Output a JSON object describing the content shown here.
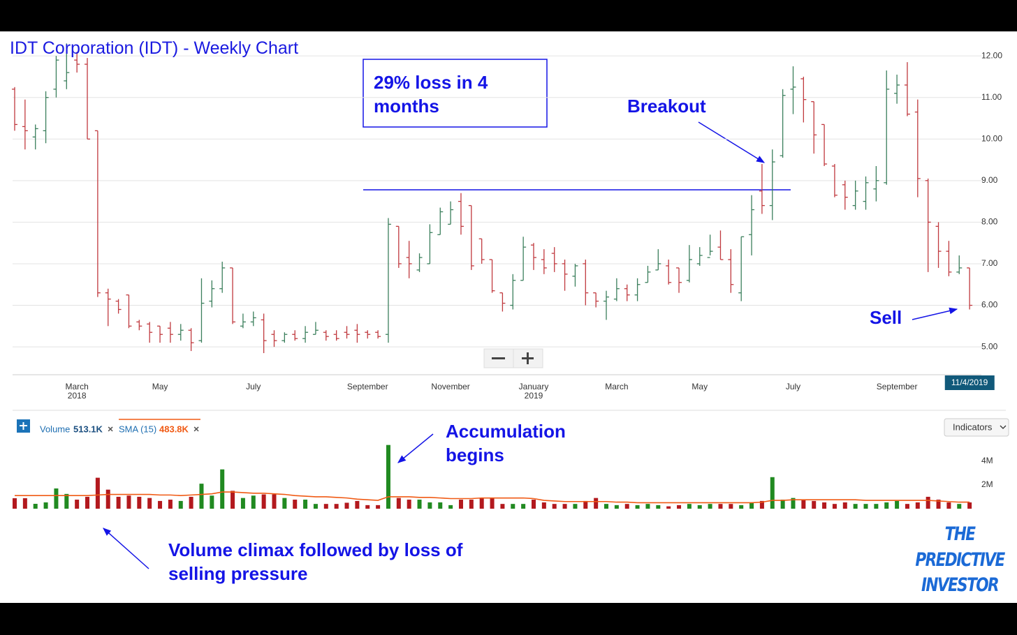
{
  "chart_data": [
    {
      "type": "ohlc",
      "title": "IDT Corporation (IDT) - Weekly Chart",
      "categories": [
        null,
        null,
        null,
        null,
        null,
        null,
        "March\n2018",
        null,
        null,
        null,
        null,
        null,
        null,
        null,
        "May",
        null,
        null,
        null,
        null,
        null,
        null,
        null,
        null,
        "July",
        null,
        null,
        null,
        null,
        null,
        null,
        null,
        null,
        null,
        null,
        "September",
        null,
        null,
        null,
        null,
        null,
        null,
        null,
        "November",
        null,
        null,
        null,
        null,
        null,
        null,
        null,
        "January\n2019",
        null,
        null,
        null,
        null,
        null,
        null,
        null,
        "March",
        null,
        null,
        null,
        null,
        null,
        null,
        null,
        "May",
        null,
        null,
        null,
        null,
        null,
        null,
        null,
        null,
        "July",
        null,
        null,
        null,
        null,
        null,
        null,
        null,
        null,
        null,
        "September",
        null,
        null,
        null,
        null,
        null,
        null,
        "11/4/2019"
      ],
      "open": [
        11.2,
        10.3,
        10.05,
        10.2,
        11.2,
        11.4,
        11.9,
        11.8,
        10.2,
        6.3,
        6.1,
        6.25,
        5.6,
        5.55,
        5.5,
        5.45,
        5.3,
        5.4,
        5.15,
        6.1,
        6.4,
        6.9,
        5.5,
        5.6,
        5.65,
        5.3,
        5.15,
        5.3,
        5.2,
        5.3,
        5.35,
        5.3,
        5.35,
        5.4,
        5.35,
        5.35,
        5.3,
        7.9,
        7.15,
        6.85,
        7.0,
        7.7,
        7.95,
        8.5,
        8.4,
        7.6,
        7.1,
        6.3,
        6.0,
        6.6,
        7.45,
        7.1,
        7.25,
        7.0,
        6.7,
        7.0,
        6.3,
        6.1,
        6.15,
        6.4,
        6.25,
        6.55,
        6.85,
        6.95,
        6.9,
        6.6,
        7.0,
        7.15,
        7.4,
        7.1,
        6.3,
        7.7,
        8.75,
        8.4,
        9.6,
        11.2,
        11.45,
        10.9,
        10.35,
        9.35,
        8.9,
        8.4,
        8.5,
        8.8,
        8.95,
        11.1,
        11.3,
        10.65,
        9.0,
        7.9,
        7.3,
        6.8,
        6.9
      ],
      "high": [
        11.25,
        10.95,
        10.35,
        11.15,
        12.0,
        12.3,
        12.1,
        11.95,
        10.2,
        6.4,
        6.15,
        6.25,
        5.65,
        5.6,
        5.5,
        5.6,
        5.55,
        5.45,
        6.65,
        6.6,
        7.05,
        6.9,
        5.8,
        5.85,
        5.8,
        5.4,
        5.35,
        5.4,
        5.5,
        5.6,
        5.4,
        5.4,
        5.5,
        5.55,
        5.4,
        5.4,
        8.1,
        7.9,
        7.55,
        7.25,
        7.95,
        8.35,
        8.5,
        8.7,
        8.4,
        7.6,
        7.1,
        6.3,
        6.75,
        7.65,
        7.5,
        7.35,
        7.4,
        7.1,
        7.0,
        7.1,
        6.3,
        6.35,
        6.65,
        6.5,
        6.65,
        6.95,
        7.35,
        7.1,
        6.9,
        7.45,
        7.4,
        7.7,
        7.8,
        7.35,
        7.65,
        8.65,
        9.4,
        9.75,
        11.2,
        11.75,
        11.5,
        10.9,
        10.35,
        9.4,
        9.0,
        9.0,
        9.1,
        9.35,
        11.65,
        11.55,
        11.85,
        10.95,
        9.05,
        8.0,
        7.55,
        7.2,
        6.9
      ],
      "low": [
        10.2,
        9.75,
        9.75,
        9.9,
        11.0,
        11.2,
        11.6,
        10.0,
        6.2,
        5.5,
        5.8,
        5.45,
        5.4,
        5.1,
        5.1,
        5.1,
        5.15,
        4.9,
        5.1,
        5.95,
        6.3,
        5.55,
        5.45,
        5.5,
        4.85,
        5.0,
        5.1,
        5.15,
        5.1,
        5.3,
        5.15,
        5.15,
        5.2,
        5.1,
        5.2,
        5.2,
        5.1,
        6.9,
        6.65,
        6.8,
        7.0,
        7.7,
        7.95,
        7.7,
        6.85,
        7.0,
        6.3,
        5.85,
        5.9,
        6.6,
        6.85,
        6.75,
        6.8,
        6.35,
        6.45,
        6.0,
        5.95,
        5.65,
        6.1,
        6.1,
        6.1,
        6.55,
        6.85,
        6.5,
        6.3,
        6.55,
        6.95,
        7.2,
        7.1,
        6.3,
        6.1,
        7.2,
        8.2,
        8.05,
        9.55,
        10.6,
        10.4,
        9.65,
        9.35,
        8.6,
        8.3,
        8.3,
        8.3,
        8.5,
        8.9,
        10.85,
        10.55,
        8.6,
        6.8,
        6.9,
        6.7,
        6.75,
        5.9
      ],
      "close": [
        10.35,
        10.2,
        10.25,
        11.0,
        11.9,
        11.6,
        11.8,
        10.0,
        6.3,
        6.15,
        5.9,
        5.5,
        5.5,
        5.35,
        5.3,
        5.3,
        5.4,
        5.1,
        6.05,
        6.4,
        6.9,
        5.6,
        5.6,
        5.7,
        5.15,
        5.15,
        5.3,
        5.2,
        5.35,
        5.4,
        5.25,
        5.2,
        5.3,
        5.3,
        5.3,
        5.25,
        7.95,
        7.0,
        7.0,
        7.15,
        7.75,
        8.25,
        8.3,
        7.9,
        6.95,
        7.1,
        6.35,
        6.05,
        6.6,
        7.4,
        7.15,
        6.9,
        7.0,
        6.75,
        6.95,
        6.3,
        6.1,
        6.2,
        6.4,
        6.25,
        6.5,
        6.8,
        7.0,
        6.55,
        6.55,
        7.1,
        7.2,
        7.3,
        7.1,
        6.5,
        7.65,
        8.3,
        8.4,
        9.45,
        11.05,
        11.25,
        10.95,
        10.1,
        9.4,
        8.65,
        8.6,
        8.75,
        8.95,
        9.0,
        11.2,
        11.3,
        10.6,
        9.05,
        8.0,
        7.3,
        6.8,
        6.9,
        6.0
      ],
      "up_color": "#3b7f5c",
      "down_color": "#c0393e",
      "ylim": [
        4.33,
        12.59
      ],
      "yticks": [
        {
          "value": 5,
          "label": "5.00"
        },
        {
          "value": 6,
          "label": "6.00"
        },
        {
          "value": 7,
          "label": "7.00"
        },
        {
          "value": 8,
          "label": "8.00"
        },
        {
          "value": 9,
          "label": "9.00"
        },
        {
          "value": 10,
          "label": "10.00"
        },
        {
          "value": 11,
          "label": "11.00"
        },
        {
          "value": 12,
          "label": "12.00"
        }
      ],
      "grid": true
    },
    {
      "type": "bar",
      "series": [
        {
          "name": "Volume",
          "current": "513.1K",
          "up_color": "#218a21",
          "down_color": "#b3191e",
          "values": [
            0.88,
            0.88,
            0.41,
            0.53,
            1.7,
            1.24,
            0.76,
            1.0,
            2.6,
            1.6,
            1.0,
            1.1,
            1.0,
            0.9,
            0.65,
            0.76,
            0.65,
            1.0,
            2.1,
            1.1,
            3.3,
            1.5,
            0.9,
            1.1,
            1.2,
            1.2,
            0.9,
            0.76,
            0.76,
            0.4,
            0.4,
            0.4,
            0.5,
            0.65,
            0.3,
            0.3,
            5.35,
            0.9,
            0.76,
            0.76,
            0.53,
            0.53,
            0.3,
            0.76,
            0.76,
            0.9,
            0.9,
            0.4,
            0.4,
            0.4,
            0.76,
            0.53,
            0.4,
            0.4,
            0.4,
            0.65,
            0.9,
            0.4,
            0.3,
            0.4,
            0.3,
            0.4,
            0.3,
            0.2,
            0.3,
            0.4,
            0.3,
            0.4,
            0.4,
            0.4,
            0.3,
            0.53,
            0.65,
            2.65,
            0.76,
            0.9,
            0.76,
            0.65,
            0.53,
            0.4,
            0.53,
            0.4,
            0.4,
            0.4,
            0.53,
            0.65,
            0.4,
            0.53,
            1.0,
            0.76,
            0.53,
            0.4,
            0.53
          ]
        },
        {
          "name": "SMA (15)",
          "current": "483.8K",
          "type": "line",
          "color": "#f05a14",
          "values": [
            1.1,
            1.1,
            1.1,
            1.1,
            1.1,
            1.1,
            1.1,
            1.1,
            1.15,
            1.2,
            1.2,
            1.2,
            1.2,
            1.2,
            1.15,
            1.15,
            1.1,
            1.15,
            1.2,
            1.25,
            1.4,
            1.4,
            1.35,
            1.3,
            1.3,
            1.25,
            1.2,
            1.1,
            1.05,
            1.0,
            1.0,
            0.95,
            0.9,
            0.8,
            0.75,
            0.7,
            1.0,
            1.0,
            1.0,
            0.95,
            0.95,
            0.9,
            0.85,
            0.85,
            0.85,
            0.9,
            0.9,
            0.9,
            0.9,
            0.9,
            0.85,
            0.7,
            0.65,
            0.6,
            0.6,
            0.6,
            0.6,
            0.6,
            0.55,
            0.55,
            0.5,
            0.5,
            0.5,
            0.5,
            0.5,
            0.5,
            0.5,
            0.5,
            0.5,
            0.5,
            0.5,
            0.5,
            0.55,
            0.7,
            0.7,
            0.75,
            0.75,
            0.75,
            0.75,
            0.75,
            0.75,
            0.75,
            0.7,
            0.7,
            0.7,
            0.7,
            0.7,
            0.7,
            0.7,
            0.65,
            0.6,
            0.55,
            0.55
          ]
        }
      ],
      "ylim": [
        0,
        5.8
      ],
      "yticks": [
        {
          "value": 2,
          "label": "2M"
        },
        {
          "value": 4,
          "label": "4M"
        }
      ],
      "grid": false
    }
  ],
  "annotations": {
    "loss": "29% loss in 4 months",
    "breakout": "Breakout",
    "sell": "Sell",
    "accumulation": "Accumulation begins",
    "climax": "Volume climax followed by loss of selling pressure"
  },
  "ui": {
    "indicators": "Indicators"
  },
  "logo": [
    "THE",
    "PREDICTIVE",
    "INVESTOR"
  ]
}
